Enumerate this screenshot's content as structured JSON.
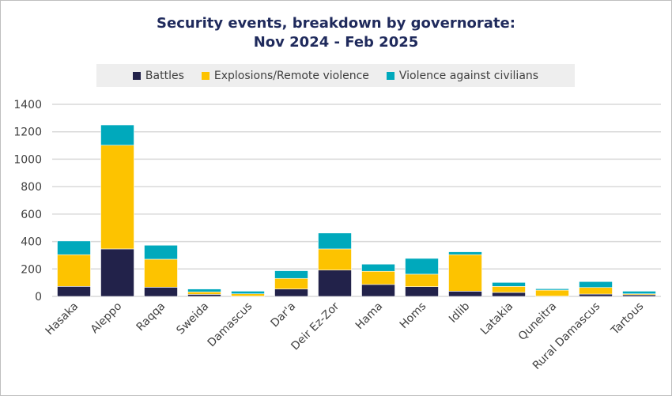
{
  "chart_data": {
    "type": "bar",
    "stacked": true,
    "title": "Security events, breakdown by governorate:",
    "subtitle": "Nov 2024 - Feb 2025",
    "xlabel": "",
    "ylabel": "",
    "ylim": [
      0,
      1400
    ],
    "yticks": [
      0,
      200,
      400,
      600,
      800,
      1000,
      1200,
      1400
    ],
    "grid": true,
    "legend_position": "top",
    "categories": [
      "Hasaka",
      "Aleppo",
      "Raqqa",
      "Sweida",
      "Damascus",
      "Dar'a",
      "Deir Ez-Zor",
      "Hama",
      "Homs",
      "Idlib",
      "Latakia",
      "Quneitra",
      "Rural Damascus",
      "Tartous"
    ],
    "series": [
      {
        "name": "Battles",
        "color": "#22224a",
        "values": [
          73,
          346,
          67,
          15,
          2,
          54,
          192,
          87,
          71,
          38,
          29,
          2,
          17,
          12
        ]
      },
      {
        "name": "Explosions/Remote violence",
        "color": "#fdc300",
        "values": [
          231,
          756,
          204,
          18,
          17,
          77,
          154,
          96,
          91,
          266,
          44,
          44,
          48,
          7
        ]
      },
      {
        "name": "Violence against civilians",
        "color": "#00a9bc",
        "values": [
          100,
          148,
          102,
          21,
          19,
          56,
          116,
          52,
          115,
          21,
          29,
          10,
          43,
          19
        ]
      }
    ]
  }
}
